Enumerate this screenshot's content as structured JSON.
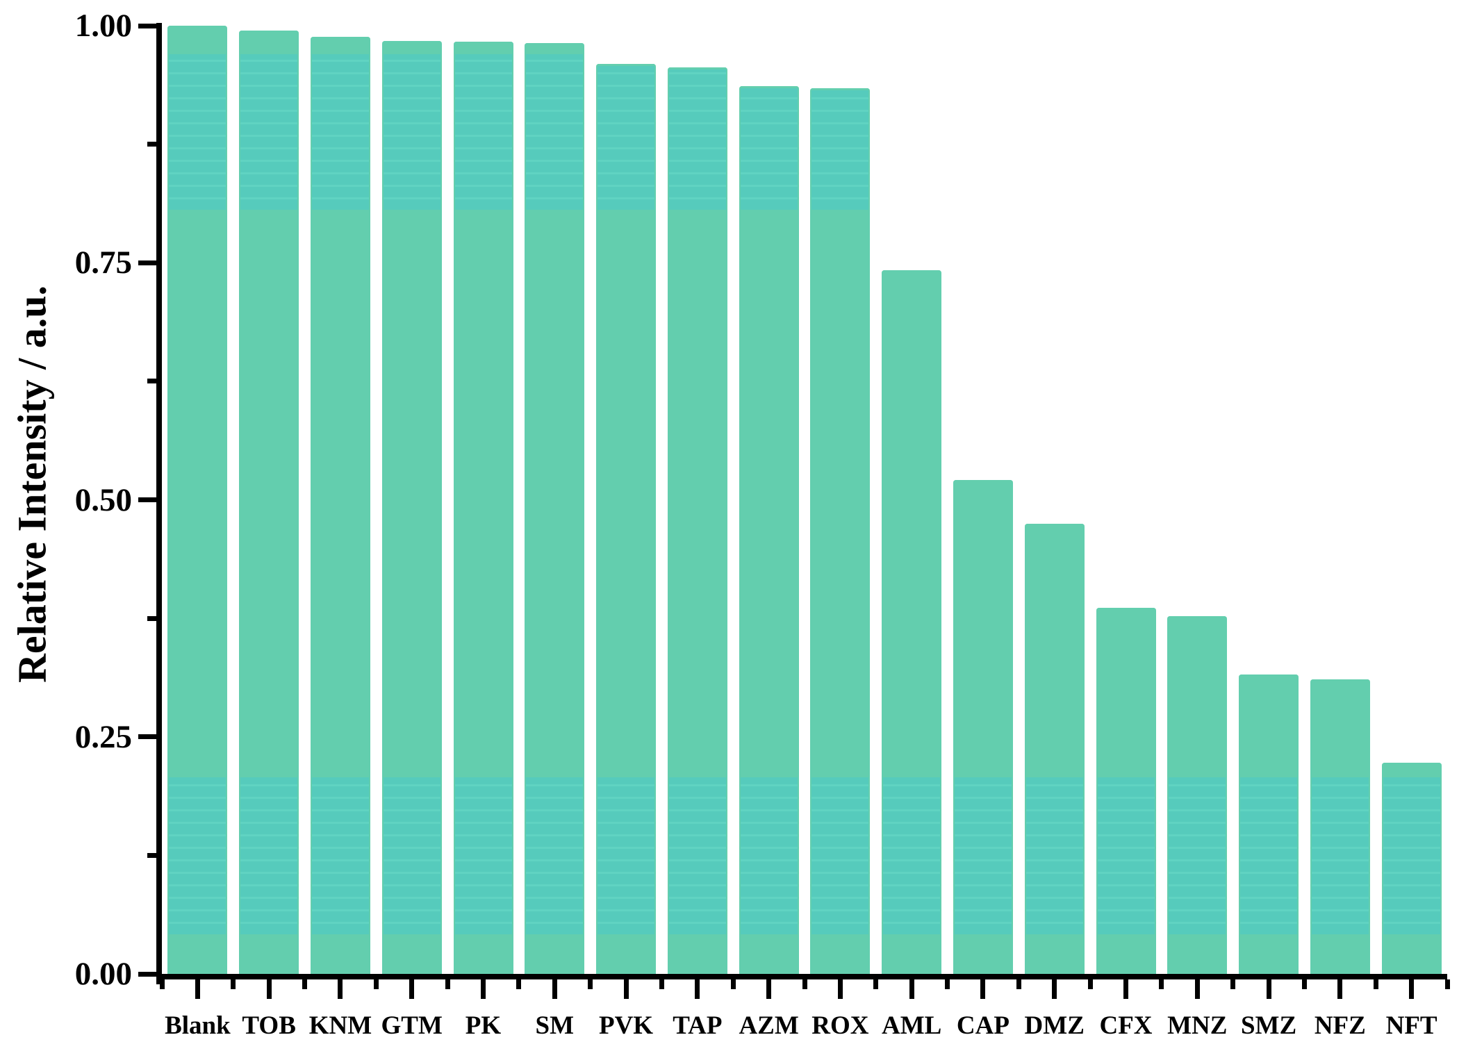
{
  "chart_data": {
    "type": "bar",
    "title": "",
    "xlabel": "",
    "ylabel": "Relative Intensity / a.u.",
    "categories": [
      "Blank",
      "TOB",
      "KNM",
      "GTM",
      "PK",
      "SM",
      "PVK",
      "TAP",
      "AZM",
      "ROX",
      "AML",
      "CAP",
      "DMZ",
      "CFX",
      "MNZ",
      "SMZ",
      "NFZ",
      "NFT"
    ],
    "values": [
      1.0,
      0.995,
      0.988,
      0.984,
      0.983,
      0.982,
      0.96,
      0.956,
      0.936,
      0.934,
      0.742,
      0.521,
      0.475,
      0.386,
      0.377,
      0.316,
      0.311,
      0.223
    ],
    "ylim": [
      0.0,
      1.0
    ],
    "ytick_majors": [
      0.0,
      0.25,
      0.5,
      0.75,
      1.0
    ],
    "ytick_labels": [
      "0.00",
      "0.25",
      "0.50",
      "0.75",
      "1.00"
    ],
    "ytick_minors": [
      0.125,
      0.375,
      0.625,
      0.875
    ],
    "grid": "off",
    "legend": "none",
    "colors": {
      "bar_fill": "#63ceae",
      "band_fill": "#56cbbc",
      "band_stripe": "#60d3c2",
      "axis": "#000000",
      "background": "#ffffff"
    },
    "overlay_bands": [
      {
        "from": 0.042,
        "to": 0.207
      },
      {
        "from": 0.806,
        "to": 0.97
      }
    ]
  }
}
